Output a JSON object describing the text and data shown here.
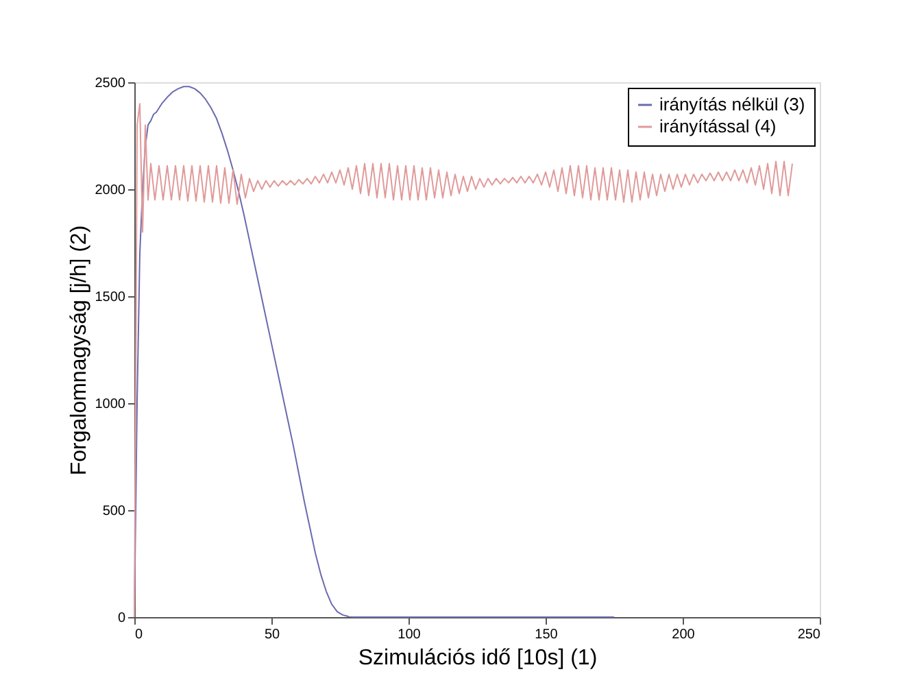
{
  "chart_data": {
    "type": "line",
    "xlabel": "Szimulációs idő [10s]  (1)",
    "ylabel": "Forgalomnagyság [j/h]  (2)",
    "xlim": [
      0,
      250
    ],
    "xticks": [
      0,
      50,
      100,
      150,
      200,
      250
    ],
    "ylim": [
      0,
      2500
    ],
    "yticks": [
      0,
      500,
      1000,
      1500,
      2000,
      2500
    ],
    "grid": false,
    "legend": "top right",
    "marker": "none",
    "line_style": "solid",
    "series": [
      {
        "name": "irányítás nélkül (3)",
        "color": "#6a6ab0",
        "x": [
          0,
          1,
          2,
          3,
          4,
          5,
          6,
          7,
          8,
          10,
          12,
          14,
          16,
          18,
          20,
          22,
          24,
          26,
          28,
          30,
          32,
          34,
          36,
          38,
          40,
          42,
          44,
          46,
          48,
          50,
          52,
          54,
          56,
          58,
          60,
          62,
          64,
          66,
          68,
          70,
          72,
          74,
          76,
          78,
          80,
          82,
          85,
          90,
          100,
          120,
          150,
          175
        ],
        "values": [
          0,
          1000,
          1700,
          2000,
          2200,
          2300,
          2320,
          2350,
          2360,
          2400,
          2430,
          2455,
          2470,
          2480,
          2480,
          2470,
          2450,
          2420,
          2380,
          2330,
          2260,
          2180,
          2090,
          1990,
          1880,
          1760,
          1640,
          1520,
          1400,
          1280,
          1160,
          1040,
          920,
          800,
          670,
          540,
          420,
          300,
          200,
          120,
          60,
          25,
          10,
          3,
          0,
          0,
          0,
          0,
          0,
          0,
          0,
          0
        ]
      },
      {
        "name": "irányítással (4)",
        "color": "#e09a9a",
        "x": [
          0,
          0.5,
          1,
          2,
          3,
          4,
          5,
          6,
          7.5,
          9,
          10.5,
          12,
          13.5,
          15,
          16.5,
          18,
          19.5,
          21,
          22.5,
          24,
          25.5,
          27,
          28.5,
          30,
          31.5,
          33,
          34.5,
          36,
          37.5,
          39,
          40.5,
          42,
          43.5,
          45,
          46.5,
          48,
          49.5,
          51,
          52.5,
          54,
          55.5,
          57,
          58.5,
          60,
          61.5,
          63,
          64.5,
          66,
          67.5,
          69,
          70.5,
          72,
          73.5,
          75,
          76.5,
          78,
          79.5,
          81,
          82.5,
          84,
          85.5,
          87,
          88.5,
          90,
          91.5,
          93,
          94.5,
          96,
          97.5,
          99,
          100.5,
          102,
          103.5,
          105,
          106.5,
          108,
          109.5,
          111,
          112.5,
          114,
          115.5,
          117,
          118.5,
          120,
          121.5,
          123,
          124.5,
          126,
          127.5,
          129,
          130.5,
          132,
          133.5,
          135,
          136.5,
          138,
          139.5,
          141,
          142.5,
          144,
          145.5,
          147,
          148.5,
          150,
          151.5,
          153,
          154.5,
          156,
          157.5,
          159,
          160.5,
          162,
          163.5,
          165,
          166.5,
          168,
          169.5,
          171,
          172.5,
          174,
          175.5,
          177,
          178.5,
          180,
          181.5,
          183,
          184.5,
          186,
          187.5,
          189,
          190.5,
          192,
          193.5,
          195,
          196.5,
          198,
          199.5,
          201,
          202.5,
          204,
          205.5,
          207,
          208.5,
          210,
          211.5,
          213,
          214.5,
          216,
          217.5,
          219,
          220.5,
          222,
          223.5,
          225,
          226.5,
          228,
          229.5,
          231,
          232.5,
          234,
          235.5,
          237,
          238.5,
          240
        ],
        "values": [
          0,
          1100,
          2300,
          2400,
          1800,
          2300,
          1950,
          2120,
          1950,
          2110,
          1950,
          2110,
          1950,
          2110,
          1950,
          2110,
          1945,
          2110,
          1945,
          2110,
          1940,
          2110,
          1940,
          2110,
          1935,
          2100,
          1935,
          2090,
          1930,
          2070,
          1960,
          2050,
          1990,
          2040,
          2000,
          2040,
          2010,
          2040,
          2015,
          2040,
          2020,
          2040,
          2020,
          2045,
          2025,
          2050,
          2025,
          2060,
          2030,
          2070,
          2030,
          2080,
          2030,
          2090,
          2020,
          2100,
          2000,
          2110,
          1980,
          2120,
          1970,
          2120,
          1960,
          2120,
          1960,
          2120,
          1950,
          2110,
          1950,
          2110,
          1950,
          2110,
          1950,
          2100,
          1950,
          2100,
          1960,
          2090,
          1960,
          2080,
          1970,
          2070,
          1980,
          2060,
          1990,
          2060,
          2000,
          2050,
          2010,
          2050,
          2020,
          2050,
          2025,
          2050,
          2030,
          2055,
          2030,
          2060,
          2030,
          2060,
          2030,
          2070,
          2020,
          2080,
          2010,
          2090,
          1990,
          2100,
          1980,
          2110,
          1970,
          2110,
          1960,
          2110,
          1950,
          2100,
          1950,
          2100,
          1950,
          2100,
          1950,
          2090,
          1940,
          2090,
          1940,
          2080,
          1950,
          2080,
          1960,
          2070,
          1970,
          2070,
          1990,
          2070,
          2000,
          2070,
          2010,
          2070,
          2020,
          2070,
          2030,
          2070,
          2040,
          2075,
          2040,
          2080,
          2040,
          2080,
          2040,
          2090,
          2040,
          2090,
          2030,
          2100,
          2020,
          2110,
          2000,
          2120,
          1980,
          2130,
          1970,
          2130,
          1970,
          2120
        ]
      }
    ]
  }
}
